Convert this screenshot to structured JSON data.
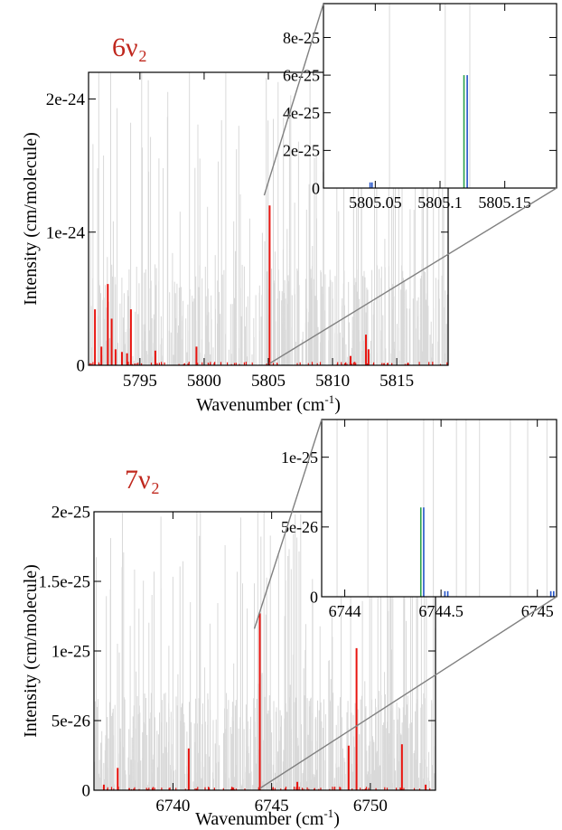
{
  "colors": {
    "background_lines": "#d9d9d9",
    "highlight": "#e8140f",
    "inset_green": "#2aa24a",
    "inset_blue": "#2453c8",
    "band_label": "#c0281e",
    "zoom_connector": "#808080"
  },
  "chart_data": [
    {
      "id": "p6",
      "type": "line",
      "band_label": "6ν₂",
      "xlabel_main": "Wavenumber (cm",
      "xlabel_sup": "-1",
      "xlabel_end": ")",
      "ylabel": "Intensity (cm/molecule)",
      "xlim": [
        5791,
        5819
      ],
      "ylim": [
        0,
        2.2e-24
      ],
      "xticks": [
        5795,
        5800,
        5805,
        5810,
        5815
      ],
      "xtick_labels": [
        "5795",
        "5800",
        "5805",
        "5810",
        "5815"
      ],
      "yticks": [
        0,
        1e-24,
        2e-24
      ],
      "ytick_labels": [
        "0",
        "1e-24",
        "2e-24"
      ],
      "highlight_peaks": [
        {
          "x": 5791.5,
          "y": 4.2e-25
        },
        {
          "x": 5792.0,
          "y": 1.4e-25
        },
        {
          "x": 5792.5,
          "y": 6.1e-25
        },
        {
          "x": 5792.8,
          "y": 3.5e-25
        },
        {
          "x": 5793.1,
          "y": 1.2e-25
        },
        {
          "x": 5793.6,
          "y": 1e-25
        },
        {
          "x": 5794.0,
          "y": 9e-26
        },
        {
          "x": 5794.3,
          "y": 4.2e-25
        },
        {
          "x": 5796.2,
          "y": 1.1e-25
        },
        {
          "x": 5799.4,
          "y": 1.4e-25
        },
        {
          "x": 5805.1,
          "y": 1.2e-24
        },
        {
          "x": 5811.4,
          "y": 7e-26
        },
        {
          "x": 5812.6,
          "y": 2.3e-25
        },
        {
          "x": 5812.8,
          "y": 1.2e-25
        }
      ],
      "zoom_x": 5805.1
    },
    {
      "id": "i6",
      "type": "bar",
      "xlim": [
        5805.01,
        5805.19
      ],
      "ylim": [
        0,
        9.8e-25
      ],
      "xticks": [
        5805.05,
        5805.1,
        5805.15
      ],
      "xtick_labels": [
        "5805.05",
        "5805.1",
        "5805.15"
      ],
      "yticks": [
        0,
        2e-25,
        4e-25,
        6e-25,
        8e-25
      ],
      "ytick_labels": [
        "0",
        "2e-25",
        "4e-25",
        "6e-25",
        "8e-25"
      ],
      "green_lines": [
        {
          "x": 5805.1185,
          "y": 6e-25
        }
      ],
      "blue_lines": [
        {
          "x": 5805.046,
          "y": 3e-26
        },
        {
          "x": 5805.0475,
          "y": 3e-26
        },
        {
          "x": 5805.121,
          "y": 6e-25
        }
      ],
      "grey_lines": [
        5805.104,
        5805.123,
        5805.061
      ]
    },
    {
      "id": "p7",
      "type": "line",
      "band_label": "7ν₂",
      "xlabel_main": "Wavenumber (cm",
      "xlabel_sup": "-1",
      "xlabel_end": ")",
      "ylabel": "Intensity (cm/molecule)",
      "xlim": [
        6736,
        6753.3
      ],
      "ylim": [
        0,
        2e-25
      ],
      "xticks": [
        6740,
        6745,
        6750
      ],
      "xtick_labels": [
        "6740",
        "6745",
        "6750"
      ],
      "yticks": [
        0,
        5e-26,
        1e-25,
        1.5e-25,
        2e-25
      ],
      "ytick_labels": [
        "0",
        "5e-26",
        "1e-25",
        "1.5e-25",
        "2e-25"
      ],
      "highlight_peaks": [
        {
          "x": 6736.5,
          "y": 4e-27
        },
        {
          "x": 6737.2,
          "y": 1.6e-26
        },
        {
          "x": 6740.8,
          "y": 3e-26
        },
        {
          "x": 6744.4,
          "y": 1.27e-25
        },
        {
          "x": 6746.3,
          "y": 6e-27
        },
        {
          "x": 6748.9,
          "y": 3.2e-26
        },
        {
          "x": 6749.3,
          "y": 1.02e-25
        },
        {
          "x": 6751.6,
          "y": 3.3e-26
        },
        {
          "x": 6752.8,
          "y": 4e-27
        }
      ],
      "zoom_x": 6744.4
    },
    {
      "id": "i7",
      "type": "bar",
      "xlim": [
        6743.88,
        6745.1
      ],
      "ylim": [
        0,
        1.27e-25
      ],
      "xticks": [
        6744,
        6744.5,
        6745
      ],
      "xtick_labels": [
        "6744",
        "6744.5",
        "6745"
      ],
      "yticks": [
        0,
        5e-26,
        1e-25
      ],
      "ytick_labels": [
        "0",
        "5e-26",
        "1e-25"
      ],
      "green_lines": [
        {
          "x": 6744.395,
          "y": 6.4e-26
        }
      ],
      "blue_lines": [
        {
          "x": 6744.41,
          "y": 6.4e-26
        },
        {
          "x": 6744.52,
          "y": 4e-27
        },
        {
          "x": 6744.535,
          "y": 4e-27
        },
        {
          "x": 6745.07,
          "y": 4e-27
        },
        {
          "x": 6745.085,
          "y": 4e-27
        }
      ],
      "grey_lines": [
        6743.96,
        6744.12,
        6744.22,
        6744.41,
        6744.46,
        6744.58,
        6744.63,
        6744.7,
        6744.86,
        6744.95,
        6745.05
      ]
    }
  ]
}
